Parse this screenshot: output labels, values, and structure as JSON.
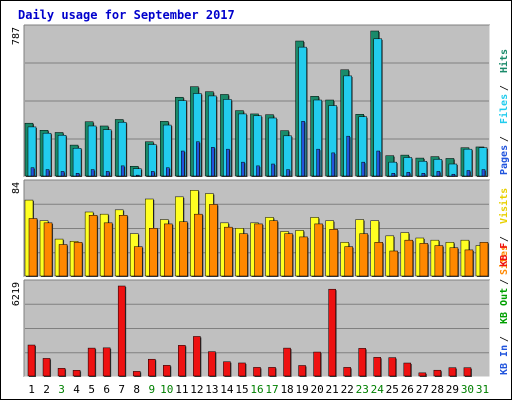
{
  "chart_data": {
    "type": "bar",
    "title": "Daily usage for September 2017",
    "categories": [
      "1",
      "2",
      "3",
      "4",
      "5",
      "6",
      "7",
      "8",
      "9",
      "10",
      "11",
      "12",
      "13",
      "14",
      "15",
      "16",
      "17",
      "18",
      "19",
      "20",
      "21",
      "22",
      "23",
      "24",
      "25",
      "26",
      "27",
      "28",
      "29",
      "30",
      "31"
    ],
    "weekend_categories": [
      "3",
      "9",
      "10",
      "16",
      "17",
      "23",
      "24",
      "30",
      "31"
    ],
    "colors": {
      "background": "#ffffff",
      "panel": "#c0c0c0",
      "grid": "#808080",
      "hits": "#1a8a6a",
      "files": "#22ccee",
      "pages": "#2255dd",
      "visits": "#ffff22",
      "sites": "#ff8800",
      "kb_f": "#ee1111",
      "title": "#0000cc",
      "weekday_label": "#000000",
      "weekend_label": "#008000"
    },
    "panels": [
      {
        "name": "hits-files-pages",
        "scale_max_label": "787",
        "ylim": [
          0,
          787
        ],
        "series": [
          {
            "name": "Hits",
            "label_color": "#1a8a6a",
            "values": [
              290,
              252,
              240,
              172,
              298,
              275,
              310,
              58,
              190,
              300,
              430,
              487,
              460,
              445,
              358,
              340,
              336,
              250,
              733,
              435,
              415,
              578,
              338,
              787,
              115,
              118,
              102,
              110,
              100,
              158,
              162
            ]
          },
          {
            "name": "Files",
            "label_color": "#22ccee",
            "values": [
              270,
              236,
              225,
              155,
              275,
              255,
              295,
              45,
              175,
              280,
              412,
              450,
              437,
              418,
              340,
              330,
              318,
              222,
              700,
              415,
              385,
              545,
              325,
              745,
              80,
              105,
              85,
              95,
              70,
              150,
              158
            ]
          },
          {
            "name": "Pages",
            "label_color": "#2255dd",
            "values": [
              50,
              40,
              30,
              20,
              40,
              30,
              60,
              10,
              30,
              50,
              140,
              190,
              160,
              150,
              80,
              60,
              70,
              40,
              300,
              150,
              130,
              220,
              80,
              140,
              20,
              25,
              20,
              30,
              15,
              35,
              40
            ]
          }
        ]
      },
      {
        "name": "visits-sites",
        "scale_max_label": "84",
        "ylim": [
          0,
          84
        ],
        "series": [
          {
            "name": "Visits",
            "label_color": "#e8d000",
            "values": [
              71,
              52,
              35,
              33,
              60,
              58,
              62,
              40,
              72,
              53,
              74,
              80,
              77,
              50,
              45,
              50,
              55,
              42,
              43,
              55,
              52,
              32,
              53,
              52,
              38,
              41,
              36,
              34,
              32,
              34,
              29
            ]
          },
          {
            "name": "Sites",
            "label_color": "#ff8800",
            "values": [
              54,
              50,
              30,
              32,
              57,
              50,
              57,
              28,
              45,
              49,
              51,
              58,
              67,
              46,
              40,
              49,
              52,
              40,
              37,
              49,
              44,
              28,
              40,
              32,
              24,
              34,
              31,
              29,
              27,
              25,
              32
            ]
          }
        ]
      },
      {
        "name": "kb-traffic",
        "scale_max_label": "6219",
        "ylim": [
          0,
          6219
        ],
        "series": [
          {
            "name": "KB F",
            "label_color": "#ee1111",
            "values": [
              2185,
              1270,
              592,
              455,
              1975,
              1993,
              6219,
              383,
              1215,
              797,
              2164,
              2771,
              1734,
              1044,
              959,
              657,
              657,
              1975,
              787,
              1705,
              6000,
              657,
              1957,
              1344,
              1325,
              955,
              284,
              464,
              637,
              637,
              0
            ]
          },
          {
            "name": "KB Out",
            "label_color": "#00a000",
            "values": []
          },
          {
            "name": "KB In",
            "label_color": "#2255dd",
            "values": []
          }
        ]
      }
    ],
    "grid": true,
    "legend": "right-vertical"
  }
}
